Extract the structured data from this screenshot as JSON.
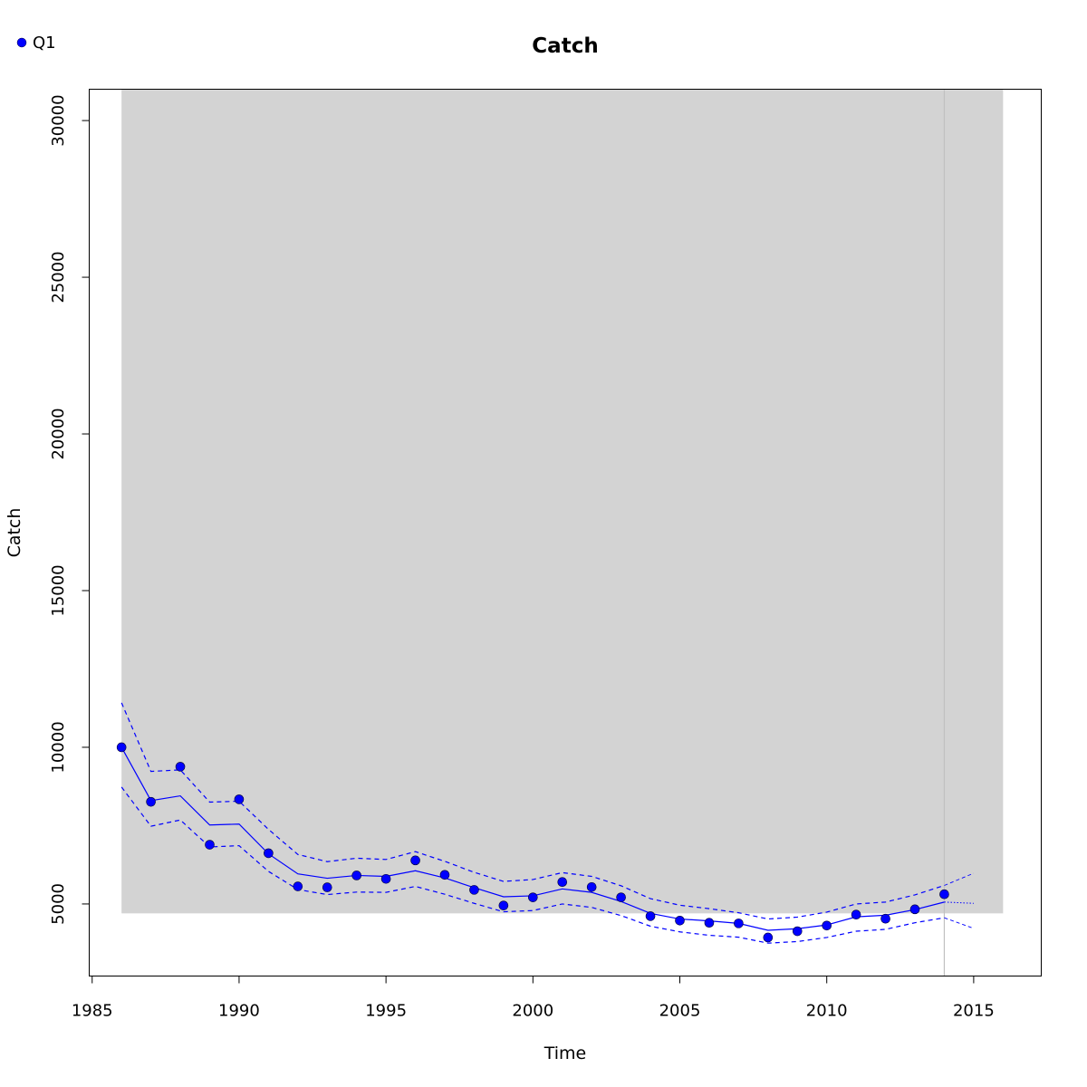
{
  "chart_data": {
    "type": "line",
    "title": "Catch",
    "xlabel": "Time",
    "ylabel": "Catch",
    "xlim": [
      1984.9,
      2017.3
    ],
    "ylim": [
      2700,
      31000
    ],
    "xticks": [
      1985,
      1990,
      1995,
      2000,
      2005,
      2010,
      2015
    ],
    "yticks": [
      5000,
      10000,
      15000,
      20000,
      25000,
      30000
    ],
    "legend_position": "top-left",
    "shaded_region": {
      "x": [
        1986,
        2016
      ],
      "y": [
        4700,
        31000
      ],
      "color": "#d3d3d3"
    },
    "vertical_line": {
      "x": 2014,
      "color": "#c0c0c0"
    },
    "series": [
      {
        "name": "Q1",
        "role": "observed",
        "style": "points",
        "color": "#0000ff",
        "x": [
          1986,
          1987,
          1988,
          1989,
          1990,
          1991,
          1992,
          1993,
          1994,
          1995,
          1996,
          1997,
          1998,
          1999,
          2000,
          2001,
          2002,
          2003,
          2004,
          2005,
          2006,
          2007,
          2008,
          2009,
          2010,
          2011,
          2012,
          2013,
          2014
        ],
        "y": [
          10000,
          8260,
          9380,
          6890,
          8340,
          6620,
          5560,
          5530,
          5910,
          5800,
          6390,
          5930,
          5450,
          4950,
          5210,
          5700,
          5540,
          5210,
          4610,
          4470,
          4400,
          4380,
          3930,
          4130,
          4310,
          4660,
          4530,
          4830,
          5310
        ]
      },
      {
        "role": "fit",
        "style": "solid",
        "color": "#0000ff",
        "x": [
          1986,
          1987,
          1988,
          1989,
          1990,
          1991,
          1992,
          1993,
          1994,
          1995,
          1996,
          1997,
          1998,
          1999,
          2000,
          2001,
          2002,
          2003,
          2004,
          2005,
          2006,
          2007,
          2008,
          2009,
          2010,
          2011,
          2012,
          2013,
          2014
        ],
        "y": [
          10000,
          8300,
          8450,
          7520,
          7550,
          6600,
          5960,
          5820,
          5910,
          5880,
          6060,
          5830,
          5520,
          5230,
          5260,
          5480,
          5370,
          5080,
          4700,
          4520,
          4460,
          4380,
          4160,
          4210,
          4330,
          4590,
          4640,
          4820,
          5060
        ]
      },
      {
        "role": "upper",
        "style": "dashed",
        "color": "#0000ff",
        "x": [
          1986,
          1987,
          1988,
          1989,
          1990,
          1991,
          1992,
          1993,
          1994,
          1995,
          1996,
          1997,
          1998,
          1999,
          2000,
          2001,
          2002,
          2003,
          2004,
          2005,
          2006,
          2007,
          2008,
          2009,
          2010,
          2011,
          2012,
          2013,
          2014
        ],
        "y": [
          11420,
          9230,
          9280,
          8250,
          8280,
          7380,
          6580,
          6350,
          6460,
          6420,
          6670,
          6360,
          6010,
          5720,
          5780,
          6000,
          5880,
          5580,
          5170,
          4960,
          4850,
          4720,
          4520,
          4580,
          4740,
          5000,
          5060,
          5290,
          5590
        ]
      },
      {
        "role": "lower",
        "style": "dashed",
        "color": "#0000ff",
        "x": [
          1986,
          1987,
          1988,
          1989,
          1990,
          1991,
          1992,
          1993,
          1994,
          1995,
          1996,
          1997,
          1998,
          1999,
          2000,
          2001,
          2002,
          2003,
          2004,
          2005,
          2006,
          2007,
          2008,
          2009,
          2010,
          2011,
          2012,
          2013,
          2014
        ],
        "y": [
          8730,
          7480,
          7680,
          6820,
          6860,
          6040,
          5460,
          5300,
          5380,
          5370,
          5560,
          5310,
          5020,
          4750,
          4790,
          5000,
          4890,
          4630,
          4290,
          4110,
          4000,
          3940,
          3750,
          3800,
          3930,
          4130,
          4190,
          4400,
          4560
        ]
      },
      {
        "role": "forecast-mean",
        "style": "dotted",
        "color": "#0000ff",
        "x": [
          2014,
          2015
        ],
        "y": [
          5060,
          5020
        ]
      },
      {
        "role": "forecast-upper",
        "style": "dashed-thin",
        "color": "#0000ff",
        "x": [
          2014,
          2015
        ],
        "y": [
          5590,
          5980
        ]
      },
      {
        "role": "forecast-lower",
        "style": "dashed-thin",
        "color": "#0000ff",
        "x": [
          2014,
          2015
        ],
        "y": [
          4560,
          4220
        ]
      }
    ]
  }
}
